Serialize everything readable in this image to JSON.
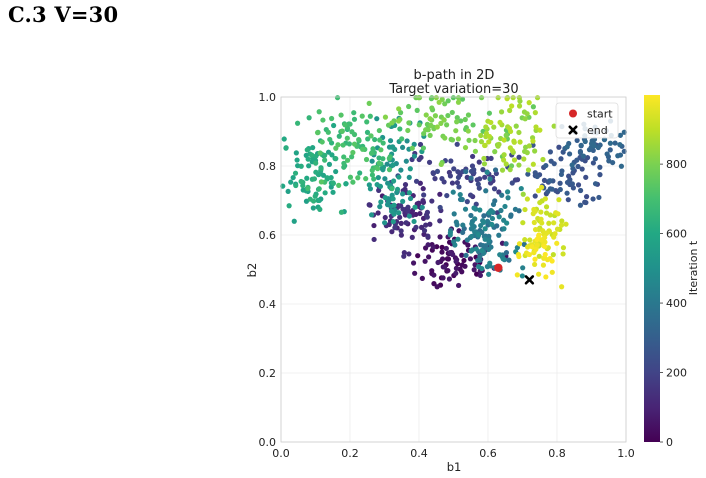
{
  "heading": "C.3 V=30",
  "colors": {
    "start_marker": "#d62728",
    "end_marker": "#000000",
    "grid": "#ececec",
    "colormap": [
      "#440154",
      "#482475",
      "#414487",
      "#355f8d",
      "#2a788e",
      "#21918c",
      "#22a884",
      "#44bf70",
      "#7ad151",
      "#bddf26",
      "#fde725"
    ]
  },
  "chart_data": {
    "type": "scatter",
    "title": "b-path in 2D",
    "subtitle": "Target variation=30",
    "xlabel": "b1",
    "ylabel": "b2",
    "xlim": [
      0,
      1
    ],
    "ylim": [
      0,
      1
    ],
    "xticks": [
      0.0,
      0.2,
      0.4,
      0.6,
      0.8,
      1.0
    ],
    "yticks": [
      0.0,
      0.2,
      0.4,
      0.6,
      0.8,
      1.0
    ],
    "xtick_labels": [
      "0.0",
      "0.2",
      "0.4",
      "0.6",
      "0.8",
      "1.0"
    ],
    "ytick_labels": [
      "0.0",
      "0.2",
      "0.4",
      "0.6",
      "0.8",
      "1.0"
    ],
    "grid": true,
    "legend_position": "top-right",
    "legend": [
      {
        "label": "start",
        "marker": "circle",
        "color": "#d62728"
      },
      {
        "label": "end",
        "marker": "x",
        "color": "#000000"
      }
    ],
    "start": {
      "x": 0.63,
      "y": 0.505
    },
    "end": {
      "x": 0.72,
      "y": 0.47
    },
    "colorbar": {
      "label": "Iteration t",
      "colormap": "viridis",
      "min": 0,
      "max": 999,
      "ticks": [
        0,
        200,
        400,
        600,
        800
      ],
      "tick_labels": [
        "0",
        "200",
        "400",
        "600",
        "800"
      ]
    },
    "iterations": 1000,
    "path_clusters": [
      {
        "t_start": 0,
        "t_end": 80,
        "center": [
          0.5,
          0.52
        ],
        "spread": [
          0.06,
          0.04
        ]
      },
      {
        "t_start": 80,
        "t_end": 160,
        "center": [
          0.36,
          0.66
        ],
        "spread": [
          0.05,
          0.05
        ]
      },
      {
        "t_start": 160,
        "t_end": 230,
        "center": [
          0.52,
          0.78
        ],
        "spread": [
          0.08,
          0.04
        ]
      },
      {
        "t_start": 230,
        "t_end": 300,
        "center": [
          0.83,
          0.77
        ],
        "spread": [
          0.05,
          0.05
        ]
      },
      {
        "t_start": 300,
        "t_end": 350,
        "center": [
          0.9,
          0.86
        ],
        "spread": [
          0.05,
          0.03
        ]
      },
      {
        "t_start": 350,
        "t_end": 480,
        "center": [
          0.59,
          0.61
        ],
        "spread": [
          0.05,
          0.07
        ]
      },
      {
        "t_start": 480,
        "t_end": 560,
        "center": [
          0.33,
          0.78
        ],
        "spread": [
          0.04,
          0.07
        ]
      },
      {
        "t_start": 560,
        "t_end": 650,
        "center": [
          0.1,
          0.78
        ],
        "spread": [
          0.05,
          0.06
        ]
      },
      {
        "t_start": 650,
        "t_end": 740,
        "center": [
          0.22,
          0.86
        ],
        "spread": [
          0.07,
          0.06
        ]
      },
      {
        "t_start": 740,
        "t_end": 830,
        "center": [
          0.47,
          0.93
        ],
        "spread": [
          0.09,
          0.05
        ]
      },
      {
        "t_start": 830,
        "t_end": 900,
        "center": [
          0.68,
          0.9
        ],
        "spread": [
          0.05,
          0.06
        ]
      },
      {
        "t_start": 900,
        "t_end": 960,
        "center": [
          0.76,
          0.63
        ],
        "spread": [
          0.03,
          0.06
        ]
      },
      {
        "t_start": 960,
        "t_end": 1000,
        "center": [
          0.74,
          0.54
        ],
        "spread": [
          0.03,
          0.04
        ]
      }
    ]
  }
}
